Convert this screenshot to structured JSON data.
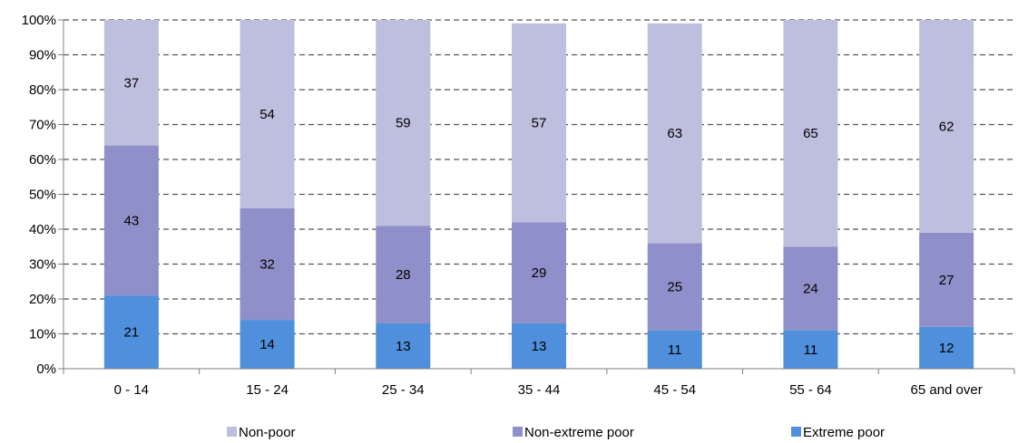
{
  "chart_data": {
    "type": "bar",
    "stacked": true,
    "categories": [
      "0 - 14",
      "15 - 24",
      "25 - 34",
      "35 - 44",
      "45 - 54",
      "55 - 64",
      "65 and over"
    ],
    "series": [
      {
        "name": "Extreme poor",
        "values": [
          21,
          14,
          13,
          13,
          11,
          11,
          12
        ],
        "color": "#4f8fdc"
      },
      {
        "name": "Non-extreme poor",
        "values": [
          43,
          32,
          28,
          29,
          25,
          24,
          27
        ],
        "color": "#8f8fc9"
      },
      {
        "name": "Non-poor",
        "values": [
          37,
          54,
          59,
          57,
          63,
          65,
          62
        ],
        "color": "#bebedf"
      }
    ],
    "y_ticks": [
      "0%",
      "10%",
      "20%",
      "30%",
      "40%",
      "50%",
      "60%",
      "70%",
      "80%",
      "90%",
      "100%"
    ],
    "ylim": [
      0,
      100
    ],
    "grid": true,
    "legend_order": [
      "Non-poor",
      "Non-extreme poor",
      "Extreme poor"
    ],
    "legend_position": "bottom"
  }
}
